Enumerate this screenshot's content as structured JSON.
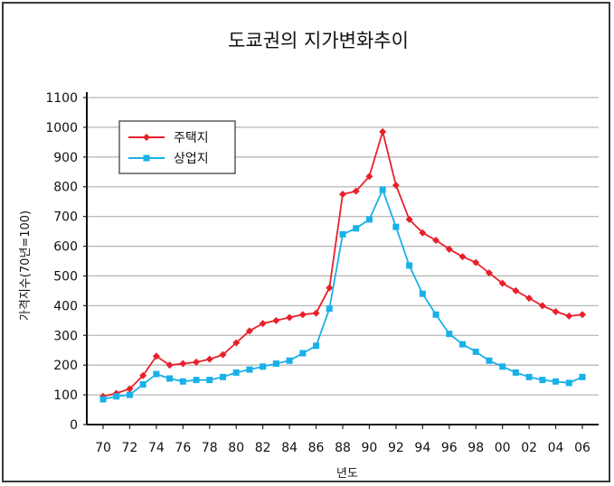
{
  "chart_data": {
    "type": "line",
    "title": "도쿄권의 지가변화추이",
    "xlabel": "년도",
    "ylabel": "가격지수(70년=100)",
    "ylim": [
      0,
      1100
    ],
    "yticks": [
      0,
      100,
      200,
      300,
      400,
      500,
      600,
      700,
      800,
      900,
      1000,
      1100
    ],
    "xlim": [
      1970,
      2006
    ],
    "xticks": [
      {
        "value": 1970,
        "label": "70"
      },
      {
        "value": 1972,
        "label": "72"
      },
      {
        "value": 1974,
        "label": "74"
      },
      {
        "value": 1976,
        "label": "76"
      },
      {
        "value": 1978,
        "label": "78"
      },
      {
        "value": 1980,
        "label": "80"
      },
      {
        "value": 1982,
        "label": "82"
      },
      {
        "value": 1984,
        "label": "84"
      },
      {
        "value": 1986,
        "label": "86"
      },
      {
        "value": 1988,
        "label": "88"
      },
      {
        "value": 1990,
        "label": "90"
      },
      {
        "value": 1992,
        "label": "92"
      },
      {
        "value": 1994,
        "label": "94"
      },
      {
        "value": 1996,
        "label": "96"
      },
      {
        "value": 1998,
        "label": "98"
      },
      {
        "value": 2000,
        "label": "00"
      },
      {
        "value": 2002,
        "label": "02"
      },
      {
        "value": 2004,
        "label": "04"
      },
      {
        "value": 2006,
        "label": "06"
      }
    ],
    "grid": true,
    "legend_position": "top-left",
    "x": [
      1970,
      1971,
      1972,
      1973,
      1974,
      1975,
      1976,
      1977,
      1978,
      1979,
      1980,
      1981,
      1982,
      1983,
      1984,
      1985,
      1986,
      1987,
      1988,
      1989,
      1990,
      1991,
      1992,
      1993,
      1994,
      1995,
      1996,
      1997,
      1998,
      1999,
      2000,
      2001,
      2002,
      2003,
      2004,
      2005,
      2006
    ],
    "series": [
      {
        "name": "주택지",
        "color": "#e8202a",
        "marker": "diamond",
        "values": [
          95,
          105,
          120,
          165,
          230,
          200,
          205,
          210,
          220,
          235,
          275,
          315,
          340,
          350,
          360,
          370,
          375,
          460,
          775,
          785,
          835,
          985,
          805,
          690,
          645,
          620,
          590,
          565,
          545,
          510,
          475,
          450,
          425,
          400,
          380,
          365,
          370
        ]
      },
      {
        "name": "상업지",
        "color": "#1ab0e8",
        "marker": "square",
        "values": [
          85,
          95,
          100,
          135,
          170,
          155,
          145,
          150,
          150,
          160,
          175,
          185,
          195,
          205,
          215,
          240,
          265,
          390,
          640,
          660,
          690,
          790,
          665,
          535,
          440,
          370,
          305,
          270,
          245,
          215,
          195,
          175,
          160,
          150,
          145,
          140,
          160
        ]
      }
    ]
  }
}
